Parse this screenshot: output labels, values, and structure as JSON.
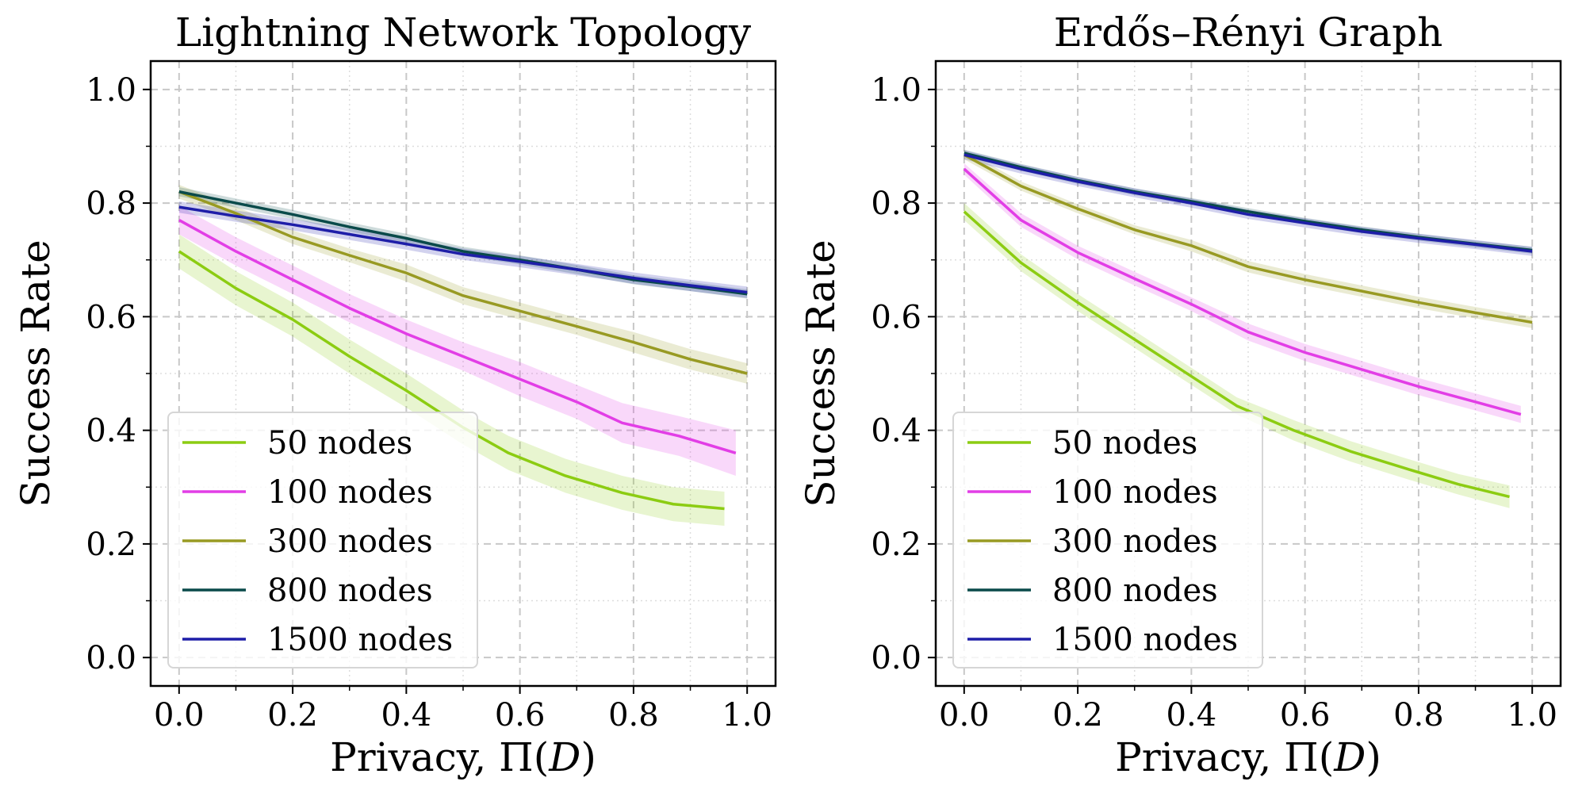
{
  "chart_data": [
    {
      "type": "line",
      "title": "Lightning Network Topology",
      "xlabel": "Privacy, Π(D)",
      "ylabel": "Success Rate",
      "xlim": [
        -0.05,
        1.05
      ],
      "ylim": [
        -0.05,
        1.05
      ],
      "xticks": [
        "0.0",
        "0.2",
        "0.4",
        "0.6",
        "0.8",
        "1.0"
      ],
      "yticks": [
        "0.0",
        "0.2",
        "0.4",
        "0.6",
        "0.8",
        "1.0"
      ],
      "grid": true,
      "legend_position": "lower-left",
      "series": [
        {
          "name": "50 nodes",
          "color": "#8ccc12",
          "x": [
            0.0,
            0.1,
            0.2,
            0.3,
            0.4,
            0.5,
            0.58,
            0.68,
            0.78,
            0.87,
            0.96
          ],
          "y": [
            0.715,
            0.65,
            0.595,
            0.53,
            0.47,
            0.405,
            0.36,
            0.32,
            0.29,
            0.27,
            0.262
          ],
          "band": [
            0.03,
            0.03,
            0.03,
            0.03,
            0.03,
            0.03,
            0.03,
            0.03,
            0.03,
            0.03,
            0.03
          ]
        },
        {
          "name": "100 nodes",
          "color": "#e23ee6",
          "x": [
            0.0,
            0.1,
            0.2,
            0.3,
            0.4,
            0.5,
            0.6,
            0.7,
            0.78,
            0.88,
            0.98
          ],
          "y": [
            0.77,
            0.715,
            0.665,
            0.615,
            0.57,
            0.53,
            0.49,
            0.45,
            0.413,
            0.39,
            0.36
          ],
          "band": [
            0.025,
            0.025,
            0.025,
            0.025,
            0.025,
            0.025,
            0.03,
            0.03,
            0.035,
            0.035,
            0.04
          ]
        },
        {
          "name": "300 nodes",
          "color": "#989a23",
          "x": [
            0.0,
            0.1,
            0.2,
            0.3,
            0.4,
            0.5,
            0.6,
            0.7,
            0.8,
            0.9,
            1.0
          ],
          "y": [
            0.82,
            0.782,
            0.74,
            0.708,
            0.677,
            0.637,
            0.61,
            0.583,
            0.555,
            0.525,
            0.5
          ],
          "band": [
            0.012,
            0.012,
            0.012,
            0.012,
            0.015,
            0.015,
            0.015,
            0.015,
            0.018,
            0.018,
            0.018
          ]
        },
        {
          "name": "800 nodes",
          "color": "#0a4a4a",
          "x": [
            0.0,
            0.1,
            0.2,
            0.3,
            0.4,
            0.5,
            0.6,
            0.7,
            0.8,
            0.9,
            1.0
          ],
          "y": [
            0.82,
            0.8,
            0.78,
            0.758,
            0.738,
            0.715,
            0.7,
            0.683,
            0.665,
            0.653,
            0.64
          ],
          "band": [
            0.008,
            0.008,
            0.008,
            0.008,
            0.008,
            0.008,
            0.008,
            0.008,
            0.008,
            0.008,
            0.008
          ]
        },
        {
          "name": "1500 nodes",
          "color": "#1e1ea8",
          "x": [
            0.0,
            0.1,
            0.2,
            0.3,
            0.4,
            0.5,
            0.6,
            0.7,
            0.8,
            0.9,
            1.0
          ],
          "y": [
            0.793,
            0.777,
            0.762,
            0.745,
            0.728,
            0.71,
            0.697,
            0.683,
            0.668,
            0.655,
            0.643
          ],
          "band": [
            0.01,
            0.01,
            0.01,
            0.01,
            0.01,
            0.01,
            0.01,
            0.01,
            0.01,
            0.01,
            0.01
          ]
        }
      ]
    },
    {
      "type": "line",
      "title": "Erdős–Rényi Graph",
      "xlabel": "Privacy, Π(D)",
      "ylabel": "Success Rate",
      "xlim": [
        -0.05,
        1.05
      ],
      "ylim": [
        -0.05,
        1.05
      ],
      "xticks": [
        "0.0",
        "0.2",
        "0.4",
        "0.6",
        "0.8",
        "1.0"
      ],
      "yticks": [
        "0.0",
        "0.2",
        "0.4",
        "0.6",
        "0.8",
        "1.0"
      ],
      "grid": true,
      "legend_position": "lower-left",
      "series": [
        {
          "name": "50 nodes",
          "color": "#8ccc12",
          "x": [
            0.0,
            0.1,
            0.2,
            0.3,
            0.4,
            0.48,
            0.58,
            0.68,
            0.78,
            0.87,
            0.96
          ],
          "y": [
            0.785,
            0.695,
            0.625,
            0.56,
            0.495,
            0.443,
            0.4,
            0.363,
            0.332,
            0.305,
            0.283
          ],
          "band": [
            0.015,
            0.015,
            0.015,
            0.015,
            0.015,
            0.015,
            0.018,
            0.018,
            0.018,
            0.018,
            0.02
          ]
        },
        {
          "name": "100 nodes",
          "color": "#e23ee6",
          "x": [
            0.0,
            0.1,
            0.2,
            0.3,
            0.4,
            0.5,
            0.6,
            0.7,
            0.8,
            0.9,
            0.98
          ],
          "y": [
            0.86,
            0.77,
            0.713,
            0.667,
            0.622,
            0.573,
            0.537,
            0.507,
            0.477,
            0.45,
            0.428
          ],
          "band": [
            0.01,
            0.012,
            0.012,
            0.012,
            0.012,
            0.015,
            0.015,
            0.015,
            0.015,
            0.015,
            0.015
          ]
        },
        {
          "name": "300 nodes",
          "color": "#989a23",
          "x": [
            0.0,
            0.1,
            0.2,
            0.3,
            0.4,
            0.5,
            0.6,
            0.7,
            0.8,
            0.9,
            1.0
          ],
          "y": [
            0.885,
            0.83,
            0.79,
            0.753,
            0.725,
            0.688,
            0.665,
            0.645,
            0.625,
            0.607,
            0.59
          ],
          "band": [
            0.008,
            0.008,
            0.008,
            0.008,
            0.01,
            0.01,
            0.01,
            0.01,
            0.01,
            0.01,
            0.01
          ]
        },
        {
          "name": "800 nodes",
          "color": "#0a4a4a",
          "x": [
            0.0,
            0.1,
            0.2,
            0.3,
            0.4,
            0.5,
            0.6,
            0.7,
            0.8,
            0.9,
            1.0
          ],
          "y": [
            0.888,
            0.863,
            0.84,
            0.82,
            0.803,
            0.785,
            0.768,
            0.753,
            0.74,
            0.728,
            0.717
          ],
          "band": [
            0.006,
            0.006,
            0.006,
            0.006,
            0.006,
            0.006,
            0.006,
            0.006,
            0.006,
            0.006,
            0.006
          ]
        },
        {
          "name": "1500 nodes",
          "color": "#1e1ea8",
          "x": [
            0.0,
            0.1,
            0.2,
            0.3,
            0.4,
            0.5,
            0.6,
            0.7,
            0.8,
            0.9,
            1.0
          ],
          "y": [
            0.885,
            0.86,
            0.838,
            0.818,
            0.8,
            0.78,
            0.765,
            0.75,
            0.738,
            0.727,
            0.715
          ],
          "band": [
            0.008,
            0.008,
            0.008,
            0.008,
            0.008,
            0.008,
            0.008,
            0.008,
            0.008,
            0.008,
            0.008
          ]
        }
      ]
    }
  ]
}
